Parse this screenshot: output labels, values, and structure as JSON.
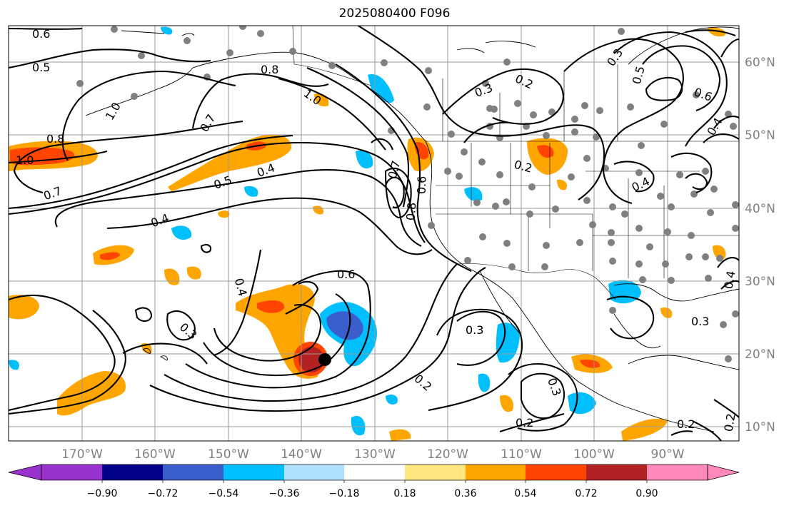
{
  "title": "2025080400 F096",
  "lon_labels": [
    "170°W",
    "160°W",
    "150°W",
    "140°W",
    "130°W",
    "120°W",
    "110°W",
    "100°W",
    "90°W"
  ],
  "lat_labels": [
    "60°N",
    "50°N",
    "40°N",
    "30°N",
    "20°N",
    "10°N"
  ],
  "colorbar": {
    "colors": [
      "#9932cc",
      "#00008b",
      "#3a5fcd",
      "#00bfff",
      "#b0e2ff",
      "#ffffff",
      "#ffe680",
      "#ffa500",
      "#ff4500",
      "#b22222",
      "#ff88bb"
    ],
    "tick_labels": [
      "−0.90",
      "−0.72",
      "−0.54",
      "−0.36",
      "−0.18",
      "0.18",
      "0.36",
      "0.54",
      "0.72",
      "0.90"
    ]
  },
  "contour_labels": [
    {
      "text": "0.6"
    },
    {
      "text": "0.5"
    },
    {
      "text": "1.0"
    },
    {
      "text": "0.8"
    },
    {
      "text": "1.0"
    },
    {
      "text": "0.7"
    },
    {
      "text": "0.8"
    },
    {
      "text": "1.0"
    },
    {
      "text": "0.7"
    },
    {
      "text": "0.5"
    },
    {
      "text": "0.4"
    },
    {
      "text": "0.4"
    },
    {
      "text": "0.4"
    },
    {
      "text": "0.3"
    },
    {
      "text": "0.6"
    },
    {
      "text": "0.3"
    },
    {
      "text": "0.2"
    },
    {
      "text": "0.2"
    },
    {
      "text": "0.3"
    },
    {
      "text": "0.2"
    },
    {
      "text": "0.7"
    },
    {
      "text": "0.8"
    },
    {
      "text": "0.6"
    },
    {
      "text": "0.3"
    },
    {
      "text": "0.2"
    },
    {
      "text": "0.4"
    },
    {
      "text": "0.5"
    },
    {
      "text": "0.6"
    },
    {
      "text": "0.4"
    },
    {
      "text": "0.3"
    },
    {
      "text": "0.2"
    },
    {
      "text": "0.2"
    },
    {
      "text": "0.3"
    },
    {
      "text": "0.4"
    }
  ]
}
